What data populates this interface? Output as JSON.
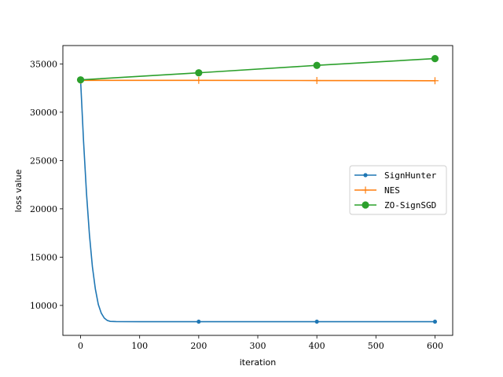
{
  "chart_data": {
    "type": "line",
    "title": "",
    "xlabel": "iteration",
    "ylabel": "loss value",
    "xlim": [
      -30,
      630
    ],
    "ylim": [
      6900,
      36900
    ],
    "xticks": [
      0,
      100,
      200,
      300,
      400,
      500,
      600
    ],
    "yticks": [
      10000,
      15000,
      20000,
      25000,
      30000,
      35000
    ],
    "grid": false,
    "legend_position": "center-right",
    "series": [
      {
        "name": "SignHunter",
        "color": "#1f77b4",
        "marker": "dot",
        "x": [
          0,
          5,
          10,
          15,
          20,
          25,
          30,
          35,
          40,
          45,
          50,
          60,
          100,
          200,
          300,
          400,
          500,
          600
        ],
        "y": [
          33300,
          27000,
          21600,
          17300,
          14000,
          11700,
          10100,
          9200,
          8700,
          8450,
          8350,
          8330,
          8320,
          8320,
          8320,
          8320,
          8320,
          8320
        ],
        "marker_x": [
          200,
          400,
          600
        ],
        "marker_y": [
          8320,
          8320,
          8320
        ]
      },
      {
        "name": "NES",
        "color": "#ff7f0e",
        "marker": "plus",
        "x": [
          0,
          200,
          400,
          600
        ],
        "y": [
          33300,
          33300,
          33280,
          33260
        ],
        "marker_x": [
          0,
          200,
          400,
          600
        ],
        "marker_y": [
          33300,
          33300,
          33280,
          33260
        ]
      },
      {
        "name": "ZO-SignSGD",
        "color": "#2ca02c",
        "marker": "circle",
        "x": [
          0,
          200,
          400,
          600
        ],
        "y": [
          33350,
          34080,
          34850,
          35550
        ],
        "marker_x": [
          0,
          200,
          400,
          600
        ],
        "marker_y": [
          33350,
          34080,
          34850,
          35550
        ]
      }
    ]
  }
}
